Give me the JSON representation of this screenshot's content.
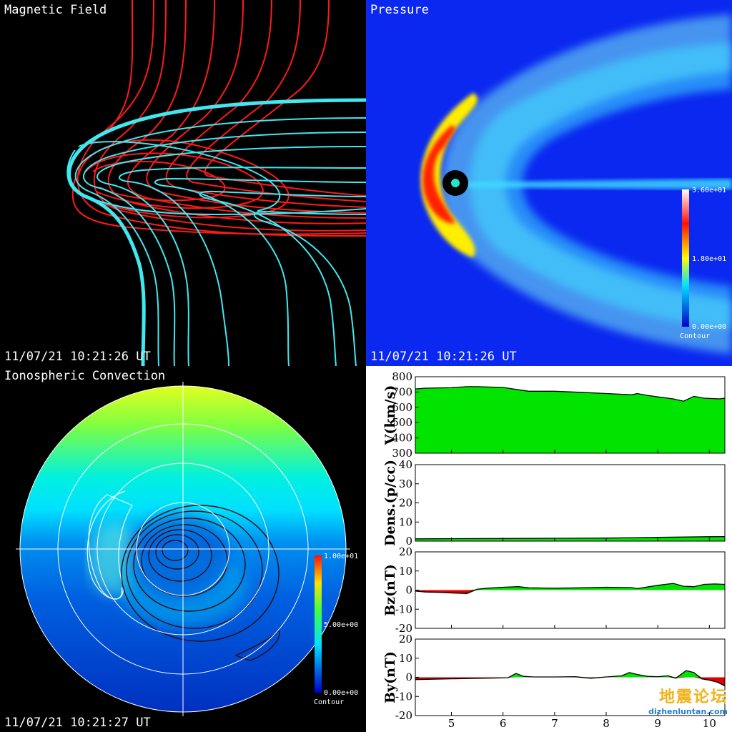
{
  "panels": {
    "magnetic": {
      "title": "Magnetic Field",
      "timestamp": "11/07/21 10:21:26 UT"
    },
    "pressure": {
      "title": "Pressure",
      "timestamp": "11/07/21 10:21:26 UT",
      "colorbar": {
        "max_label": "3.60e+01",
        "mid_label": "1.80e+01",
        "min_label": "0.00e+00",
        "caption": "Contour"
      }
    },
    "iono": {
      "title": "Ionospheric Convection",
      "timestamp": "11/07/21 10:21:27 UT",
      "colorbar": {
        "max_label": "1.00e+01",
        "mid_label": "5.00e+00",
        "min_label": "0.00e+00",
        "caption": "Contour"
      }
    }
  },
  "watermark": {
    "line1": "地震论坛",
    "line2": "dizhenluntan.com"
  },
  "colors": {
    "fill_positive": "#00e400",
    "fill_negative": "#e00000",
    "field_red": "#ff1a1a",
    "field_cyan": "#40e8f0"
  },
  "chart_data": [
    {
      "type": "area",
      "ylabel": "V(km/s)",
      "ylim": [
        300,
        800
      ],
      "yticks": [
        300,
        400,
        500,
        600,
        700,
        800
      ],
      "x": [
        4.3,
        4.5,
        5.0,
        5.3,
        5.5,
        6.0,
        6.5,
        7.0,
        7.5,
        8.0,
        8.5,
        8.6,
        8.8,
        9.0,
        9.3,
        9.5,
        9.7,
        9.9,
        10.2,
        10.3
      ],
      "values": [
        720,
        725,
        728,
        735,
        735,
        730,
        705,
        705,
        698,
        690,
        682,
        690,
        678,
        668,
        655,
        640,
        672,
        660,
        655,
        660
      ]
    },
    {
      "type": "area",
      "ylabel": "Dens.(p/cc)",
      "ylim": [
        0,
        40
      ],
      "yticks": [
        0,
        10,
        20,
        30,
        40
      ],
      "x": [
        4.3,
        5.0,
        6.0,
        7.0,
        8.0,
        9.0,
        10.0,
        10.3
      ],
      "values": [
        1.2,
        1.3,
        1.4,
        1.5,
        1.6,
        2.0,
        2.3,
        2.4
      ]
    },
    {
      "type": "area",
      "ylabel": "Bz(nT)",
      "ylim": [
        -20,
        20
      ],
      "yticks": [
        -20,
        -10,
        0,
        10,
        20
      ],
      "x": [
        4.3,
        4.5,
        4.8,
        5.0,
        5.3,
        5.5,
        5.7,
        6.0,
        6.3,
        6.5,
        7.0,
        7.5,
        8.0,
        8.5,
        8.6,
        9.0,
        9.3,
        9.5,
        9.7,
        9.9,
        10.1,
        10.3
      ],
      "values": [
        -0.5,
        -1.0,
        -1.2,
        -1.5,
        -1.8,
        0.5,
        1.0,
        1.5,
        1.8,
        1.2,
        1.0,
        1.2,
        1.5,
        1.3,
        0.8,
        2.5,
        3.5,
        2.0,
        1.8,
        3.0,
        3.2,
        3.0
      ]
    },
    {
      "type": "area",
      "ylabel": "By(nT)",
      "ylim": [
        -20,
        20
      ],
      "yticks": [
        -20,
        -10,
        0,
        10,
        20
      ],
      "xticks": [
        5,
        6,
        7,
        8,
        9,
        10
      ],
      "x": [
        4.3,
        4.6,
        5.0,
        5.4,
        5.8,
        6.1,
        6.25,
        6.4,
        6.6,
        7.0,
        7.4,
        7.7,
        8.0,
        8.3,
        8.45,
        8.6,
        8.8,
        9.0,
        9.2,
        9.35,
        9.55,
        9.7,
        9.85,
        10.0,
        10.15,
        10.3
      ],
      "values": [
        -1.2,
        -1.0,
        -0.8,
        -0.6,
        -0.4,
        -0.2,
        2.0,
        0.5,
        0.2,
        0.2,
        0.3,
        -0.5,
        0.2,
        0.8,
        2.5,
        1.5,
        0.5,
        0.3,
        0.8,
        -0.5,
        3.5,
        2.5,
        -0.8,
        -1.5,
        -2.5,
        -4.5
      ]
    }
  ]
}
